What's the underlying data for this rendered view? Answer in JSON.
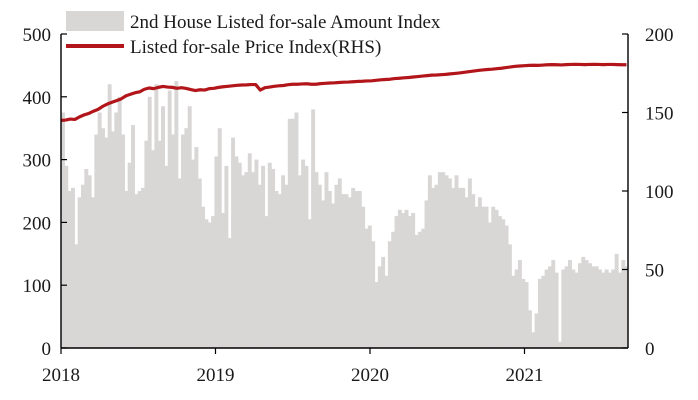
{
  "chart_data": {
    "type": "bar+line",
    "legend_position": "top-left",
    "grid": false,
    "series": [
      {
        "name": "2nd House Listed for-sale Amount Index",
        "type": "bar",
        "axis": "left",
        "color": "#d9d6d6",
        "values": [
          375,
          290,
          250,
          255,
          165,
          240,
          260,
          285,
          275,
          240,
          340,
          375,
          350,
          335,
          420,
          345,
          375,
          400,
          340,
          250,
          295,
          355,
          245,
          250,
          255,
          330,
          400,
          315,
          420,
          330,
          385,
          290,
          410,
          340,
          425,
          270,
          340,
          350,
          385,
          300,
          320,
          270,
          225,
          205,
          200,
          210,
          305,
          350,
          215,
          290,
          175,
          335,
          305,
          295,
          275,
          280,
          310,
          280,
          300,
          260,
          290,
          210,
          295,
          285,
          250,
          245,
          275,
          260,
          365,
          365,
          375,
          275,
          300,
          290,
          205,
          380,
          280,
          260,
          235,
          280,
          250,
          230,
          260,
          270,
          245,
          245,
          240,
          255,
          250,
          250,
          225,
          190,
          195,
          170,
          105,
          130,
          145,
          115,
          170,
          185,
          210,
          220,
          215,
          220,
          210,
          215,
          180,
          185,
          190,
          235,
          275,
          255,
          260,
          280,
          280,
          275,
          270,
          255,
          275,
          255,
          255,
          240,
          270,
          245,
          225,
          240,
          225,
          225,
          200,
          225,
          220,
          210,
          205,
          195,
          165,
          115,
          125,
          140,
          110,
          105,
          60,
          25,
          55,
          110,
          115,
          125,
          130,
          140,
          120,
          10,
          125,
          130,
          140,
          125,
          120,
          135,
          145,
          140,
          135,
          130,
          130,
          125,
          120,
          125,
          120,
          125,
          150,
          120,
          140,
          130
        ],
        "ylim": [
          0,
          500
        ]
      },
      {
        "name": "Listed for-sale Price Index(RHS)",
        "type": "line",
        "axis": "right",
        "color": "#b2161a",
        "x": [
          0,
          0.03,
          0.06,
          0.09,
          0.12,
          0.15,
          0.18,
          0.21,
          0.24,
          0.27,
          0.3,
          0.33,
          0.36,
          0.39,
          0.42,
          0.45,
          0.48,
          0.51,
          0.54,
          0.57,
          0.6,
          0.63,
          0.66,
          0.69,
          0.72,
          0.75,
          0.78,
          0.81,
          0.84,
          0.87,
          0.9,
          0.93,
          0.96,
          0.99,
          1.02,
          1.05,
          1.08,
          1.11,
          1.14,
          1.17,
          1.2,
          1.23,
          1.26,
          1.29,
          1.32,
          1.35,
          1.38,
          1.41,
          1.44,
          1.47,
          1.5,
          1.53,
          1.56,
          1.59,
          1.62,
          1.65,
          1.68,
          1.71,
          1.74,
          1.77,
          1.8,
          1.83,
          1.86,
          1.89,
          1.92,
          1.95,
          1.98,
          2.01,
          2.04,
          2.07,
          2.1,
          2.13,
          2.16,
          2.19,
          2.22,
          2.25,
          2.28,
          2.31,
          2.34,
          2.37,
          2.4,
          2.43,
          2.46,
          2.49,
          2.52,
          2.55,
          2.58,
          2.61,
          2.64,
          2.67,
          2.7,
          2.73,
          2.76,
          2.79,
          2.82,
          2.85,
          2.88,
          2.91,
          2.94,
          2.97,
          3.0,
          3.03,
          3.06,
          3.09,
          3.12,
          3.15,
          3.18,
          3.21,
          3.24,
          3.27,
          3.3,
          3.33,
          3.36,
          3.39,
          3.42,
          3.45,
          3.48,
          3.51,
          3.54,
          3.57,
          3.6,
          3.63,
          3.66
        ],
        "values": [
          145.0,
          145.2,
          145.8,
          145.6,
          147.2,
          148.5,
          149.4,
          150.8,
          152.0,
          153.9,
          155.4,
          156.5,
          157.6,
          158.7,
          160.6,
          161.6,
          162.6,
          163.2,
          164.8,
          165.6,
          165.2,
          166.0,
          166.6,
          166.2,
          166.0,
          165.4,
          165.8,
          165.3,
          164.6,
          164.0,
          164.5,
          164.3,
          165.2,
          165.4,
          166.0,
          166.4,
          166.7,
          167.0,
          167.3,
          167.5,
          167.6,
          167.8,
          167.8,
          164.3,
          165.8,
          166.2,
          166.7,
          167.0,
          167.2,
          167.7,
          168.0,
          168.0,
          168.2,
          168.3,
          168.0,
          168.0,
          168.4,
          168.6,
          168.8,
          168.9,
          169.1,
          169.3,
          169.4,
          169.6,
          169.8,
          169.9,
          170.1,
          170.2,
          170.5,
          170.8,
          171.0,
          171.2,
          171.6,
          171.8,
          172.1,
          172.3,
          172.6,
          172.9,
          173.2,
          173.5,
          173.8,
          173.9,
          174.1,
          174.3,
          174.6,
          174.9,
          175.2,
          175.6,
          176.0,
          176.4,
          176.8,
          177.1,
          177.4,
          177.6,
          177.9,
          178.2,
          178.6,
          179.0,
          179.4,
          179.6,
          179.8,
          180.0,
          180.1,
          180.0,
          180.2,
          180.4,
          180.5,
          180.4,
          180.3,
          180.5,
          180.6,
          180.7,
          180.6,
          180.5,
          180.6,
          180.7,
          180.6,
          180.5,
          180.6,
          180.6,
          180.5,
          180.4,
          180.4
        ],
        "ylim": [
          0,
          200
        ]
      }
    ],
    "x_range": [
      0,
      3.67
    ],
    "x_ticks": [
      {
        "value": 0,
        "label": "2018"
      },
      {
        "value": 1,
        "label": "2019"
      },
      {
        "value": 2,
        "label": "2020"
      },
      {
        "value": 3,
        "label": "2021"
      }
    ],
    "left_axis": {
      "ylim": [
        0,
        500
      ],
      "ticks": [
        "0",
        "100",
        "200",
        "300",
        "400",
        "500"
      ]
    },
    "right_axis": {
      "ylim": [
        0,
        200
      ],
      "ticks": [
        "0",
        "50",
        "100",
        "150",
        "200"
      ]
    }
  }
}
